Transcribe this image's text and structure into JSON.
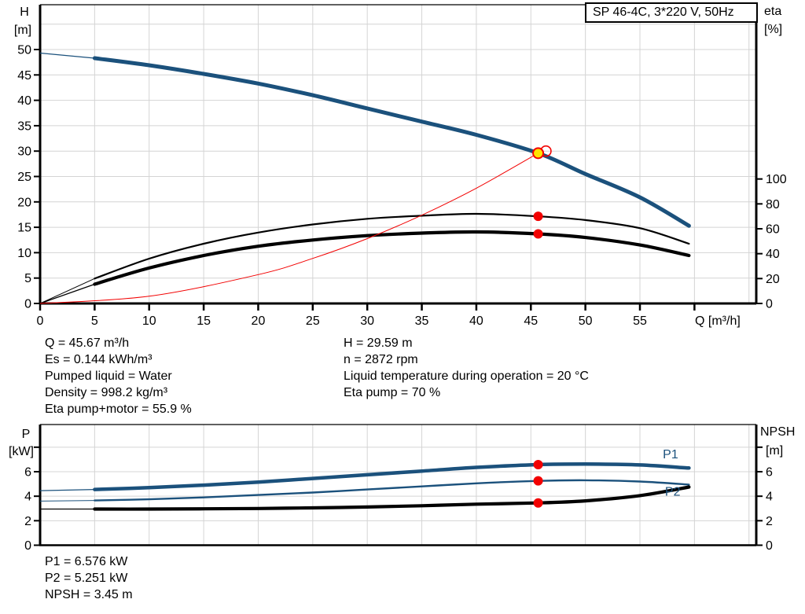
{
  "title": "SP 46-4C, 3*220 V, 50Hz",
  "colors": {
    "curve_blue": "#1b517c",
    "curve_black": "#000000",
    "curve_red": "#f20000",
    "duty_fill": "#ffe400",
    "grid": "#d4d4d4",
    "axis": "#000000",
    "text": "#000000"
  },
  "operating_point_text": {
    "left": [
      "Q = 45.67 m³/h",
      "Es = 0.144 kWh/m³",
      "Pumped liquid = Water",
      "Density = 998.2 kg/m³",
      "Eta pump+motor = 55.9 %"
    ],
    "right": [
      "H = 29.59 m",
      "n = 2872 rpm",
      "Liquid temperature during operation = 20 °C",
      "Eta pump = 70 %"
    ]
  },
  "power_text": [
    "P1 = 6.576 kW",
    "P2 = 5.251 kW",
    "NPSH = 3.45 m"
  ],
  "chart_data": [
    {
      "type": "line",
      "title": "SP 46-4C, 3*220 V, 50Hz",
      "xlabel": "Q [m³/h]",
      "x_ticks": [
        0,
        5,
        10,
        15,
        20,
        25,
        30,
        35,
        40,
        45,
        50,
        55
      ],
      "x_ticks_unlabeled": [
        60
      ],
      "x_max": 65.7,
      "x_grid_step": 5,
      "x_grid_max": 65,
      "grid_y": [
        5,
        10,
        15,
        20,
        25,
        30,
        35,
        40,
        45,
        50,
        55
      ],
      "left_axis": {
        "label": [
          "H",
          "[m]"
        ],
        "ticks": [
          0,
          5,
          10,
          15,
          20,
          25,
          30,
          35,
          40,
          45,
          50
        ],
        "ticks_unlabeled": [],
        "max": 58.8
      },
      "right_axis": {
        "label": [
          "eta",
          "[%]"
        ],
        "ticks": [
          0,
          20,
          40,
          60,
          80,
          100
        ],
        "ticks_unlabeled": [],
        "max": 240
      },
      "series": [
        {
          "name": "head-curve",
          "legend": "H",
          "axis": "left",
          "color": "blue",
          "width": 5,
          "thin_until": 5,
          "x": [
            0,
            5,
            10,
            15,
            20,
            25,
            30,
            35,
            40,
            45.67,
            50,
            55,
            59.5
          ],
          "y": [
            49.3,
            48.3,
            46.9,
            45.2,
            43.3,
            41.0,
            38.4,
            35.8,
            33.2,
            29.59,
            25.5,
            20.9,
            15.3
          ]
        },
        {
          "name": "eta-pump",
          "legend": "Eta pump",
          "axis": "right",
          "color": "black",
          "width": 2.2,
          "thin_until": 5,
          "x": [
            0,
            5,
            10,
            15,
            20,
            25,
            30,
            35,
            40,
            45.67,
            50,
            55,
            59.5
          ],
          "y": [
            0,
            20,
            36,
            48,
            57,
            63.5,
            68,
            70.5,
            72,
            70,
            67,
            60.5,
            48
          ]
        },
        {
          "name": "eta-pump-motor",
          "legend": "Eta pump+motor",
          "axis": "right",
          "color": "black",
          "width": 4.2,
          "thin_until": 5,
          "x": [
            0,
            5,
            10,
            15,
            20,
            25,
            30,
            35,
            40,
            45.67,
            50,
            55,
            59.5
          ],
          "y": [
            0,
            15.5,
            28.5,
            38.5,
            46,
            51,
            54.5,
            56.5,
            57.5,
            55.9,
            53,
            47,
            38.5
          ]
        },
        {
          "name": "system-curve",
          "legend": "System curve",
          "axis": "left",
          "color": "red",
          "width": 1,
          "thin_until": null,
          "x": [
            0,
            10,
            20,
            25,
            30,
            35,
            40,
            45.67
          ],
          "y": [
            0,
            1.42,
            5.68,
            8.87,
            12.77,
            17.38,
            22.7,
            29.59
          ]
        }
      ],
      "markers": [
        {
          "type": "ring",
          "axis": "left",
          "x": 46.38,
          "y": 30.0
        },
        {
          "type": "duty",
          "axis": "left",
          "x": 45.67,
          "y": 29.59
        },
        {
          "type": "dot",
          "axis": "right",
          "x": 45.67,
          "y": 70
        },
        {
          "type": "dot",
          "axis": "right",
          "x": 45.67,
          "y": 55.9
        }
      ],
      "series_labels": []
    },
    {
      "type": "line",
      "title": "",
      "xlabel": "",
      "x_ticks": [],
      "x_ticks_unlabeled": [],
      "x_max": 65.7,
      "x_grid_step": 5,
      "x_grid_max": 65,
      "grid_y": [
        2,
        4,
        6,
        8
      ],
      "left_axis": {
        "label": [
          "P",
          "[kW]"
        ],
        "ticks": [
          0,
          2,
          4,
          6
        ],
        "ticks_unlabeled": [
          8
        ],
        "max": 9.85
      },
      "right_axis": {
        "label": [
          "NPSH",
          "[m]"
        ],
        "ticks": [
          0,
          2,
          4,
          6
        ],
        "ticks_unlabeled": [
          8
        ],
        "max": 9.85
      },
      "series": [
        {
          "name": "p1-curve",
          "legend": "P1",
          "axis": "left",
          "color": "blue",
          "width": 4.5,
          "thin_until": 5,
          "x": [
            0,
            5,
            10,
            15,
            20,
            25,
            30,
            35,
            40,
            45.67,
            50,
            55,
            59.5
          ],
          "y": [
            4.45,
            4.55,
            4.7,
            4.9,
            5.15,
            5.45,
            5.75,
            6.05,
            6.35,
            6.576,
            6.62,
            6.55,
            6.3
          ]
        },
        {
          "name": "p2-curve",
          "legend": "P2",
          "axis": "left",
          "color": "blue",
          "width": 2.4,
          "thin_until": 5,
          "x": [
            0,
            5,
            10,
            15,
            20,
            25,
            30,
            35,
            40,
            45.67,
            50,
            55,
            59.5
          ],
          "y": [
            3.6,
            3.65,
            3.75,
            3.9,
            4.1,
            4.3,
            4.55,
            4.8,
            5.05,
            5.251,
            5.3,
            5.2,
            4.95
          ]
        },
        {
          "name": "npsh-curve",
          "legend": "NPSH",
          "axis": "right",
          "color": "black",
          "width": 4.2,
          "thin_until": 5,
          "x": [
            0,
            5,
            10,
            15,
            20,
            25,
            30,
            35,
            40,
            45.67,
            50,
            55,
            59.5
          ],
          "y": [
            2.95,
            2.95,
            2.95,
            2.97,
            3.0,
            3.05,
            3.12,
            3.22,
            3.35,
            3.45,
            3.62,
            4.05,
            4.75
          ]
        }
      ],
      "markers": [
        {
          "type": "dot",
          "axis": "left",
          "x": 45.67,
          "y": 6.576
        },
        {
          "type": "dot",
          "axis": "left",
          "x": 45.67,
          "y": 5.251
        },
        {
          "type": "dot",
          "axis": "right",
          "x": 45.67,
          "y": 3.45
        }
      ],
      "series_labels": [
        {
          "text": "P1",
          "x": 57.1,
          "y": 7.1
        },
        {
          "text": "P2",
          "x": 57.3,
          "y": 4.05
        }
      ]
    }
  ]
}
